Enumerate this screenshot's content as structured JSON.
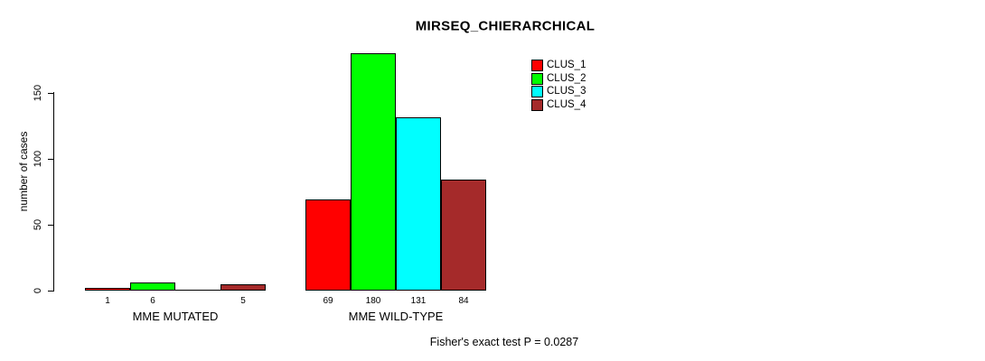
{
  "page": {
    "background": "#FFFFFF",
    "text_color": "#000000"
  },
  "chart_data": {
    "type": "bar",
    "title": "MIRSEQ_CHIERARCHICAL",
    "ylabel": "number of cases",
    "xlabel": "",
    "ylim": [
      0,
      183
    ],
    "yticks": [
      0,
      50,
      100,
      150
    ],
    "grid": false,
    "bar_border_color": "#000000",
    "categories": [
      "MME MUTATED",
      "MME WILD-TYPE"
    ],
    "series": [
      {
        "name": "CLUS_1",
        "color": "#FF0000",
        "values": [
          1,
          69
        ]
      },
      {
        "name": "CLUS_2",
        "color": "#00FF00",
        "values": [
          6,
          180
        ]
      },
      {
        "name": "CLUS_3",
        "color": "#00FFFF",
        "values": [
          0,
          131
        ]
      },
      {
        "name": "CLUS_4",
        "color": "#A52A2A",
        "values": [
          5,
          84
        ]
      }
    ],
    "bar_value_labels": [
      [
        "1",
        "6",
        "",
        "5"
      ],
      [
        "69",
        "180",
        "131",
        "84"
      ]
    ],
    "legend": {
      "position": "top-right",
      "entries": [
        "CLUS_1",
        "CLUS_2",
        "CLUS_3",
        "CLUS_4"
      ]
    },
    "annotation": "Fisher's exact test P = 0.0287"
  }
}
